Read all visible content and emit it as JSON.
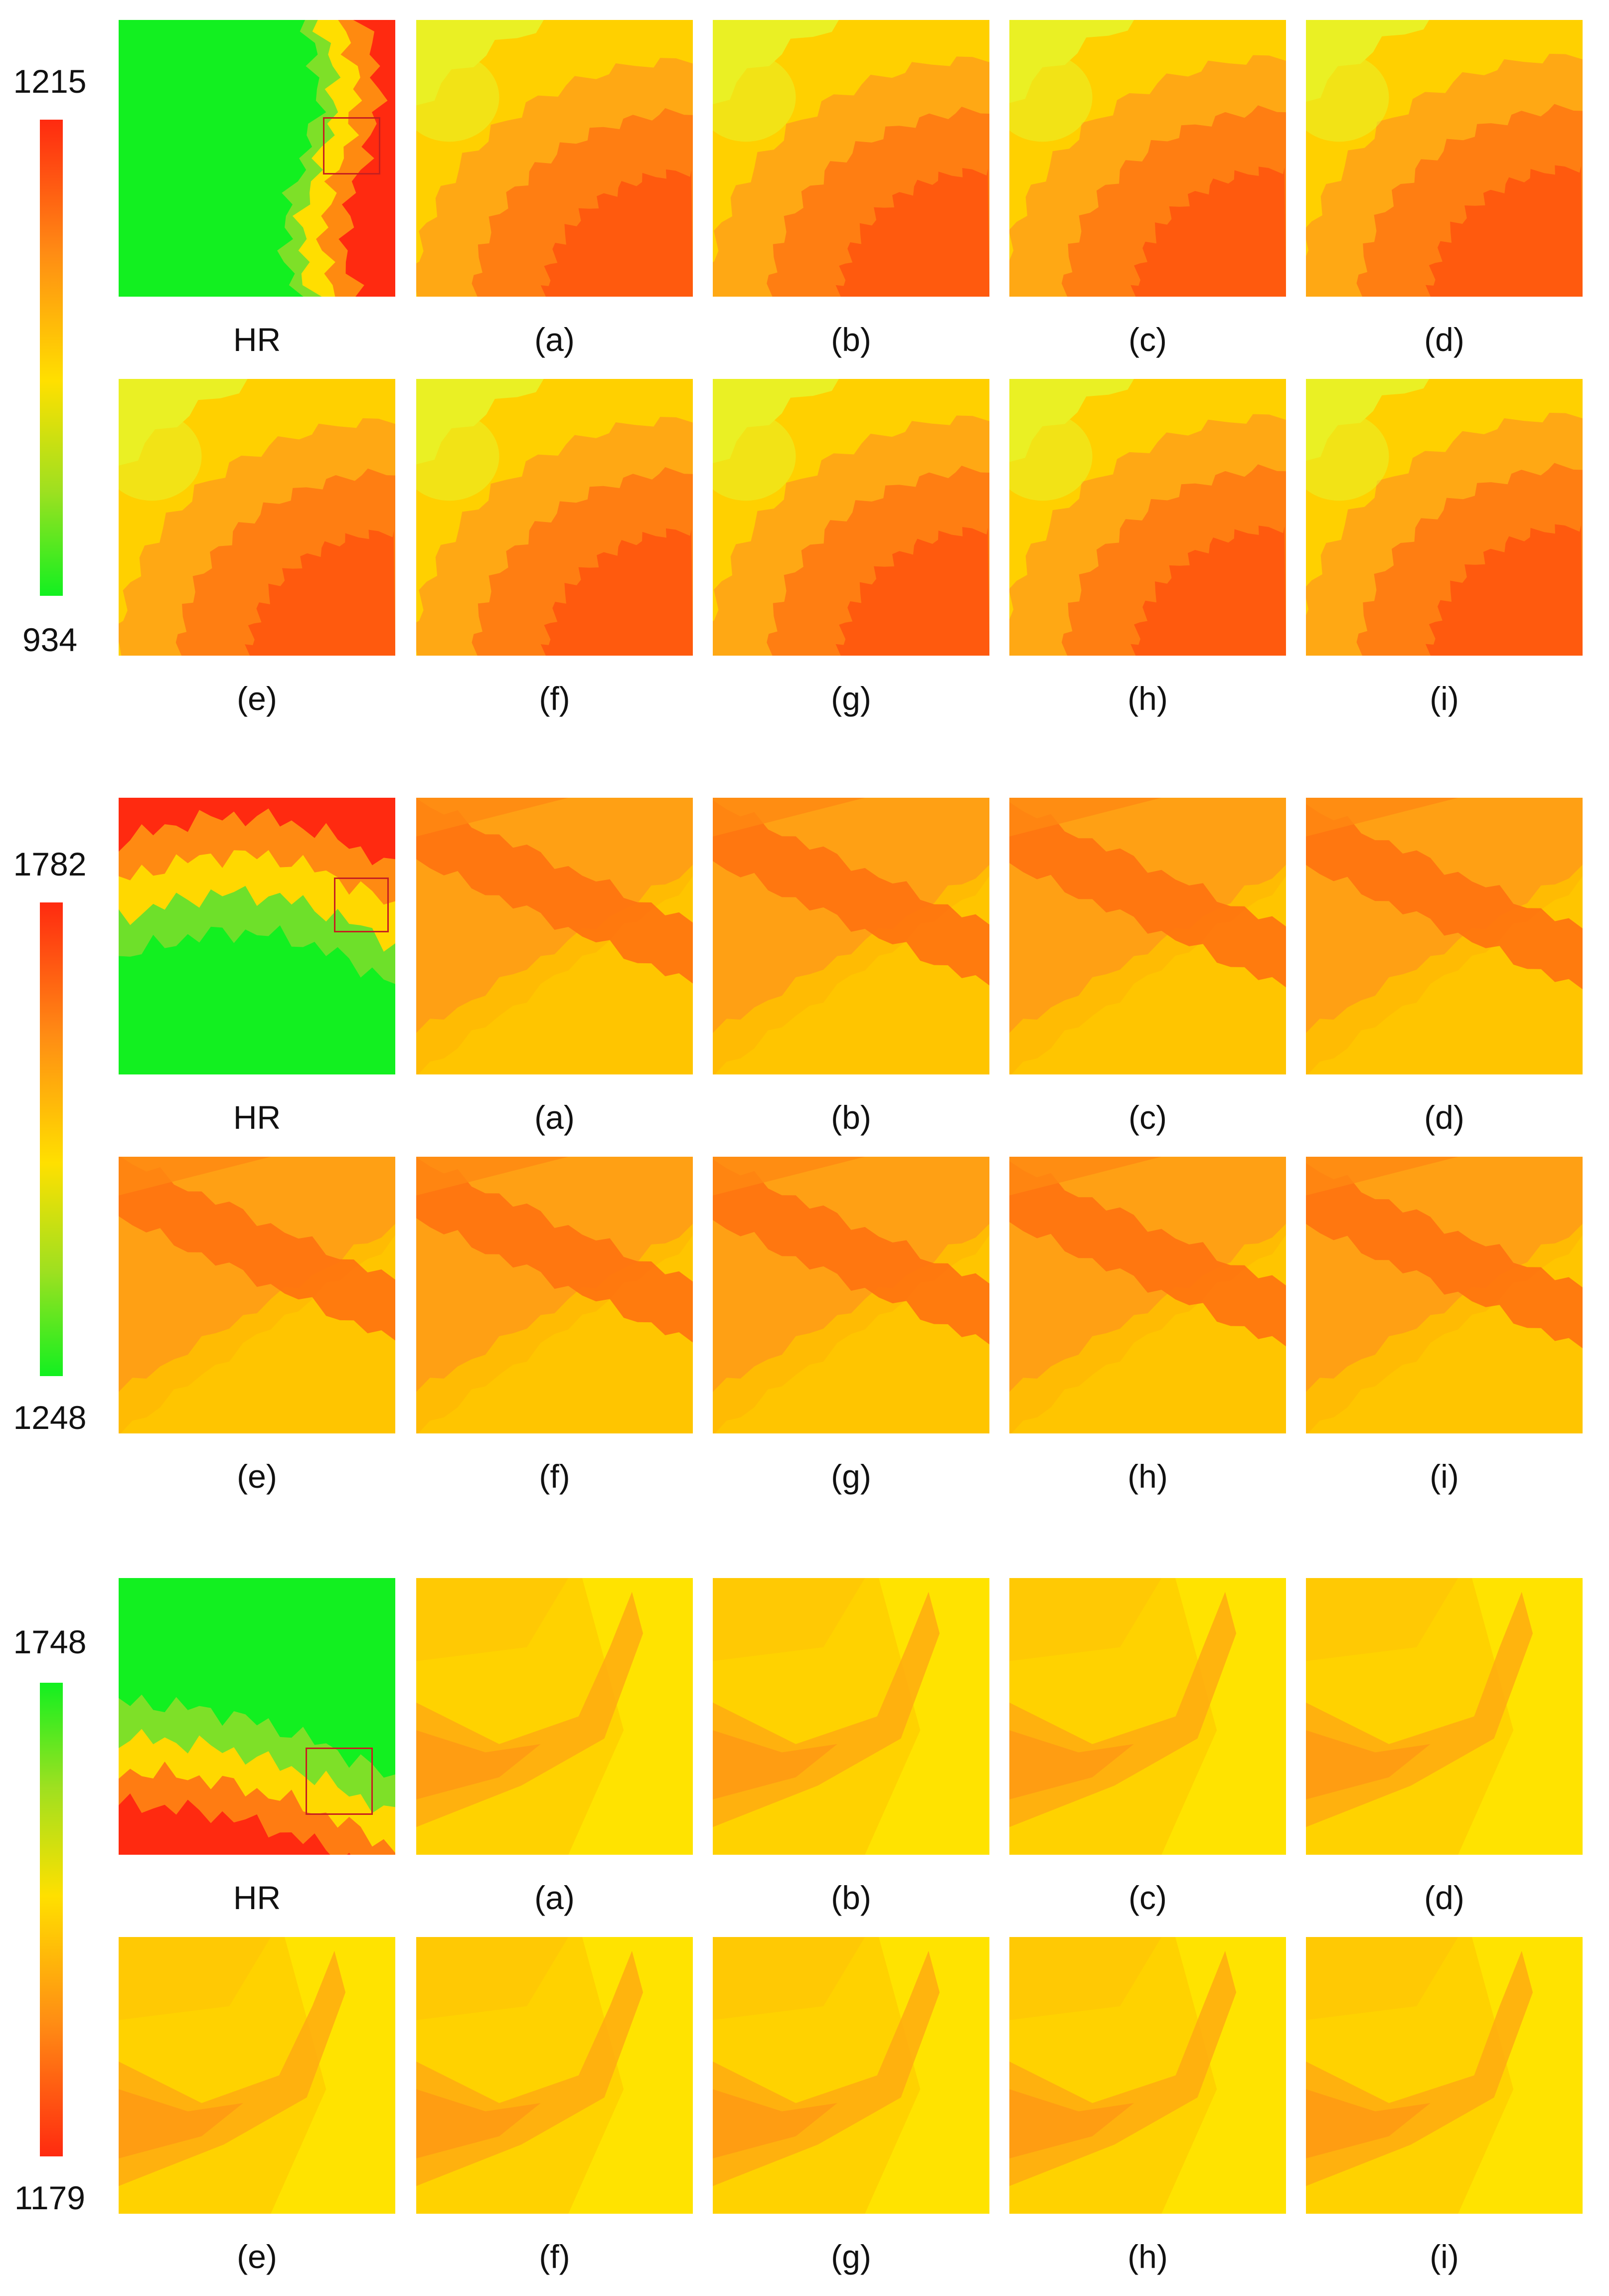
{
  "figure": {
    "blocks": [
      {
        "id": "block-1",
        "colorbar": {
          "max": "1215",
          "min": "934",
          "top_color": "#ff2a10",
          "bottom_color": "#12f020",
          "direction": "red-top"
        },
        "hr": {
          "label": "HR",
          "colors": [
            "#12f020",
            "#7ee028",
            "#ffde00",
            "#ff8a10",
            "#ff2a10"
          ],
          "pattern": "right-edge"
        },
        "zoom_pattern": "corner-bottom-right",
        "zoom_colors": [
          "#eaf024",
          "#ffd000",
          "#ffa814",
          "#ff7e12",
          "#ff5a0e"
        ],
        "captions": [
          "(a)",
          "(b)",
          "(c)",
          "(d)",
          "(e)",
          "(f)",
          "(g)",
          "(h)",
          "(i)"
        ]
      },
      {
        "id": "block-2",
        "colorbar": {
          "max": "1782",
          "min": "1248",
          "top_color": "#ff2a10",
          "bottom_color": "#12f020",
          "direction": "red-top"
        },
        "hr": {
          "label": "HR",
          "colors": [
            "#12f020",
            "#6ee02a",
            "#ffd800",
            "#ff8a12",
            "#ff2a10"
          ],
          "pattern": "top-band"
        },
        "zoom_pattern": "diagonal",
        "zoom_colors": [
          "#ffe000",
          "#ffc000",
          "#ffa014",
          "#ff8812",
          "#ff7210"
        ],
        "captions": [
          "(a)",
          "(b)",
          "(c)",
          "(d)",
          "(e)",
          "(f)",
          "(g)",
          "(h)",
          "(i)"
        ]
      },
      {
        "id": "block-3",
        "colorbar": {
          "max": "1748",
          "min": "1179",
          "top_color": "#12f020",
          "bottom_color": "#ff2a10",
          "direction": "green-top"
        },
        "hr": {
          "label": "HR",
          "colors": [
            "#12f020",
            "#7ee028",
            "#ffd800",
            "#ff7c12",
            "#ff2a10"
          ],
          "pattern": "bottom-left"
        },
        "zoom_pattern": "chevron",
        "zoom_colors": [
          "#ffe300",
          "#ffd200",
          "#ffbf08",
          "#ffab10",
          "#ff9814"
        ],
        "captions": [
          "(a)",
          "(b)",
          "(c)",
          "(d)",
          "(e)",
          "(f)",
          "(g)",
          "(h)",
          "(i)"
        ]
      }
    ]
  }
}
